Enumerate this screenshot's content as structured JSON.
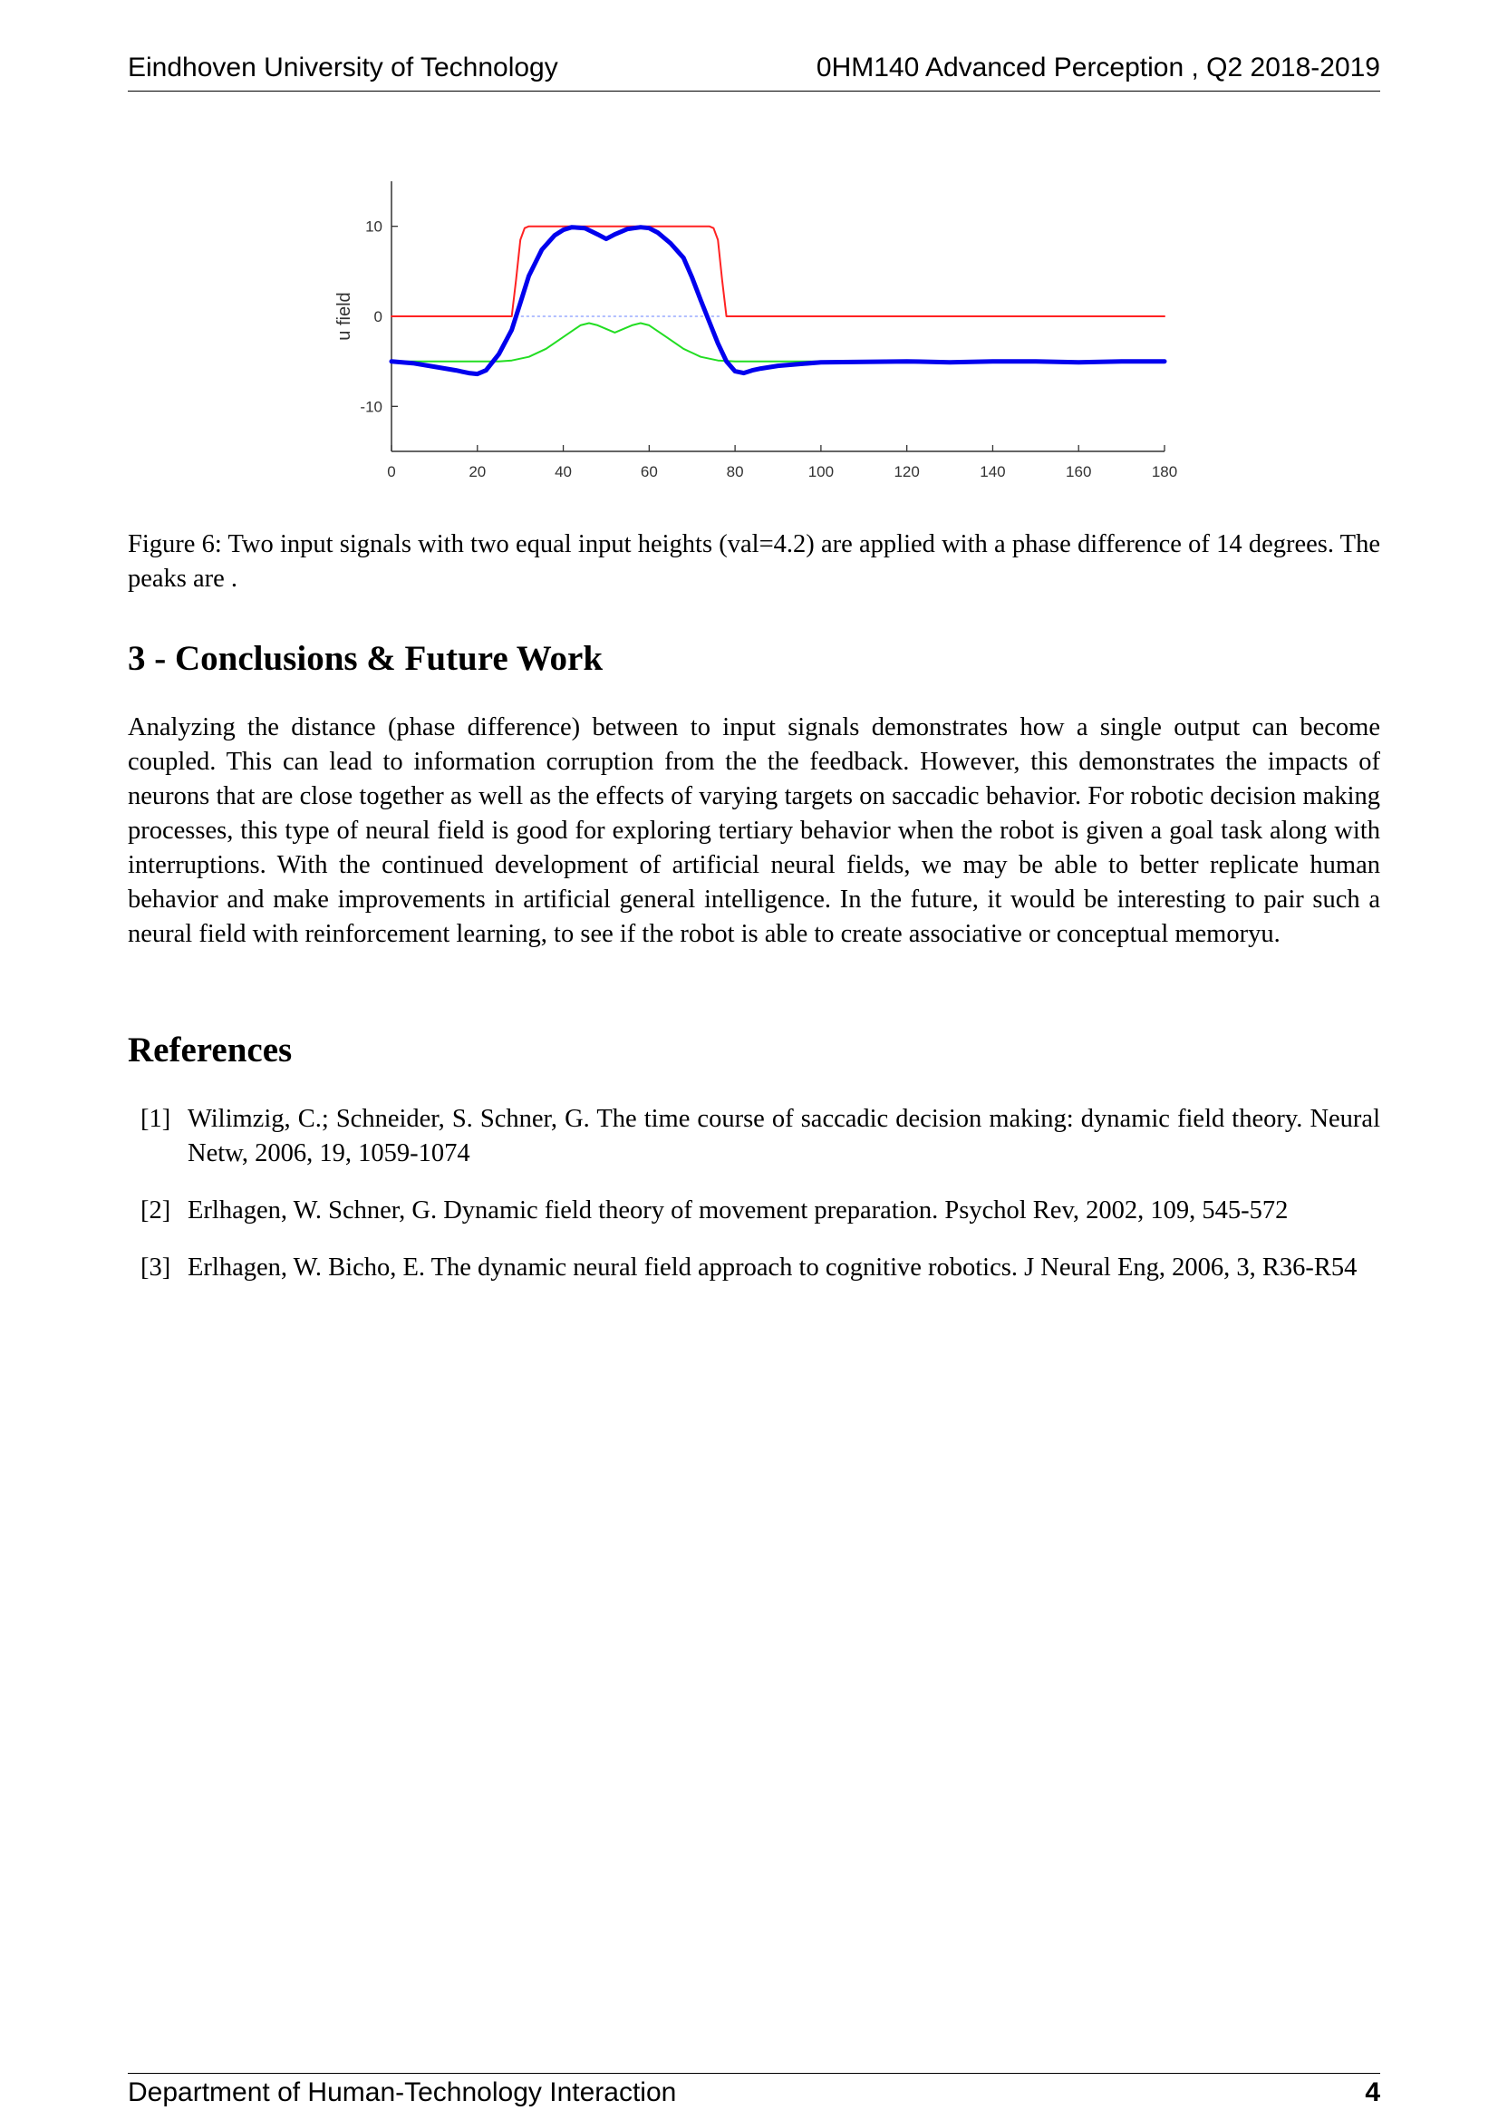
{
  "header": {
    "left": "Eindhoven University of Technology",
    "right": "0HM140 Advanced Perception , Q2 2018-2019"
  },
  "figure": {
    "caption": "Figure 6: Two input signals with two equal input heights (val=4.2) are applied with a phase difference of 14 degrees. The peaks are ."
  },
  "section": {
    "title": "3 - Conclusions & Future Work",
    "paragraph": "Analyzing the distance (phase difference) between to input signals demonstrates how a single output can become coupled. This can lead to information corruption from the the feedback. However, this demonstrates the impacts of neurons that are close together as well as the effects of varying targets on saccadic behavior. For robotic decision making processes, this type of neural field is good for exploring tertiary behavior when the robot is given a goal task along with interruptions. With the continued development of artificial neural fields, we may be able to better replicate human behavior and make improvements in artificial general intelligence. In the future, it would be interesting to pair such a neural field with reinforcement learning, to see if the robot is able to create associative or conceptual memoryu."
  },
  "references": {
    "title": "References",
    "items": [
      {
        "num": "[1]",
        "text": "Wilimzig, C.; Schneider, S. Schner, G. The time course of saccadic decision making: dynamic field theory. Neural Netw, 2006, 19, 1059-1074"
      },
      {
        "num": "[2]",
        "text": "Erlhagen, W. Schner, G. Dynamic field theory of movement preparation. Psychol Rev, 2002, 109, 545-572"
      },
      {
        "num": "[3]",
        "text": "Erlhagen, W. Bicho, E. The dynamic neural field approach to cognitive robotics. J Neural Eng, 2006, 3, R36-R54"
      }
    ]
  },
  "footer": {
    "left": "Department of Human-Technology Interaction",
    "page": "4"
  },
  "chart_data": {
    "type": "line",
    "title": "",
    "xlabel": "",
    "ylabel": "u field",
    "xlim": [
      0,
      180
    ],
    "ylim": [
      -15,
      15
    ],
    "xticks": [
      0,
      20,
      40,
      60,
      80,
      100,
      120,
      140,
      160,
      180
    ],
    "yticks": [
      -10,
      0,
      10
    ],
    "grid": false,
    "series": [
      {
        "color": "#ff2222",
        "style": "solid",
        "width": 2,
        "x": [
          0,
          28,
          29,
          30,
          31,
          32,
          74,
          75,
          76,
          77,
          78,
          180
        ],
        "y": [
          0,
          0,
          4,
          8.5,
          9.8,
          10,
          10,
          9.8,
          8.5,
          4,
          0,
          0
        ]
      },
      {
        "color": "#22dd22",
        "style": "solid",
        "width": 2,
        "x": [
          0,
          25,
          28,
          32,
          36,
          40,
          44,
          46,
          48,
          52,
          56,
          58,
          60,
          64,
          68,
          72,
          76,
          80,
          84,
          180
        ],
        "y": [
          -5,
          -5,
          -4.9,
          -4.5,
          -3.6,
          -2.3,
          -1,
          -0.75,
          -1,
          -1.8,
          -1,
          -0.75,
          -1,
          -2.3,
          -3.6,
          -4.5,
          -4.9,
          -5,
          -5,
          -5
        ]
      },
      {
        "color": "#99aaff",
        "style": "dotted",
        "width": 1.5,
        "x": [
          29,
          77
        ],
        "y": [
          0,
          0
        ]
      },
      {
        "color": "#0000ee",
        "style": "solid",
        "width": 5,
        "x": [
          0,
          5,
          10,
          15,
          18,
          20,
          22,
          25,
          28,
          30,
          32,
          35,
          38,
          40,
          42,
          45,
          48,
          50,
          52,
          55,
          58,
          60,
          62,
          65,
          68,
          70,
          72,
          74,
          76,
          78,
          80,
          82,
          84,
          86,
          90,
          95,
          100,
          110,
          120,
          130,
          140,
          150,
          160,
          170,
          180
        ],
        "y": [
          -5,
          -5.2,
          -5.6,
          -6,
          -6.3,
          -6.4,
          -6,
          -4.2,
          -1.5,
          1.5,
          4.5,
          7.4,
          9,
          9.6,
          9.9,
          9.8,
          9.1,
          8.6,
          9.1,
          9.7,
          9.9,
          9.8,
          9.3,
          8.1,
          6.5,
          4.3,
          1.8,
          -0.6,
          -3,
          -5,
          -6.1,
          -6.3,
          -6,
          -5.8,
          -5.5,
          -5.3,
          -5.1,
          -5.05,
          -5.0,
          -5.1,
          -5.0,
          -5.0,
          -5.1,
          -5.0,
          -5.0
        ]
      }
    ]
  }
}
